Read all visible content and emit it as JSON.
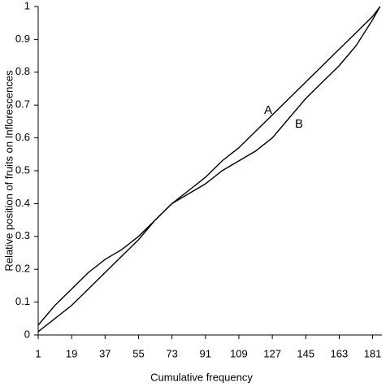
{
  "chart_data": {
    "type": "line",
    "x_label": "Cumulative frequency",
    "y_label": "Relative position of fruits on Inflorescences",
    "x": [
      1,
      10,
      19,
      28,
      37,
      46,
      55,
      64,
      73,
      82,
      91,
      100,
      109,
      118,
      127,
      136,
      145,
      154,
      163,
      172,
      181,
      185
    ],
    "series": [
      {
        "name": "A",
        "color": "#000000",
        "values": [
          0.03,
          0.09,
          0.14,
          0.19,
          0.23,
          0.26,
          0.3,
          0.35,
          0.4,
          0.44,
          0.48,
          0.53,
          0.57,
          0.62,
          0.67,
          0.72,
          0.77,
          0.82,
          0.87,
          0.92,
          0.97,
          1.0
        ]
      },
      {
        "name": "B",
        "color": "#000000",
        "values": [
          0.01,
          0.05,
          0.09,
          0.14,
          0.19,
          0.24,
          0.29,
          0.35,
          0.4,
          0.43,
          0.46,
          0.5,
          0.53,
          0.56,
          0.6,
          0.66,
          0.72,
          0.77,
          0.82,
          0.88,
          0.96,
          1.0
        ]
      }
    ],
    "xlim": [
      1,
      186
    ],
    "xticks": [
      1,
      19,
      37,
      55,
      73,
      91,
      109,
      127,
      145,
      163,
      181
    ],
    "ylim": [
      0,
      1
    ],
    "yticks": [
      0,
      0.1,
      0.2,
      0.3,
      0.4,
      0.5,
      0.6,
      0.7,
      0.8,
      0.9,
      1
    ],
    "grid": false
  }
}
